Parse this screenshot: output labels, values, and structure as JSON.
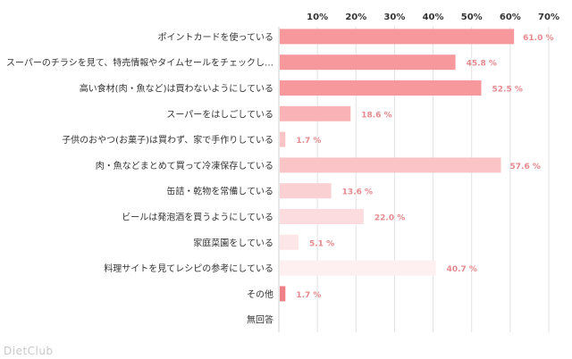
{
  "watermark": "DietClub",
  "chart_data": {
    "type": "bar",
    "orientation": "horizontal",
    "categories": [
      "ポイントカードを使っている",
      "スーパーのチラシを見て、特売情報やタイムセールをチェックし…",
      "高い食材(肉・魚など)は買わないようにしている",
      "スーパーをはしごしている",
      "子供のおやつ(お菓子)は買わず、家で手作りしている",
      "肉・魚などまとめて買って冷凍保存している",
      "缶詰・乾物を常備している",
      "ビールは発泡酒を買うようにしている",
      "家庭菜園をしている",
      "料理サイトを見てレシピの参考にしている",
      "その他",
      "無回答"
    ],
    "values": [
      61.0,
      45.8,
      52.5,
      18.6,
      1.7,
      57.6,
      13.6,
      22.0,
      5.1,
      40.7,
      1.7,
      null
    ],
    "value_labels": [
      "61.0 %",
      "45.8 %",
      "52.5 %",
      "18.6 %",
      "1.7 %",
      "57.6 %",
      "13.6 %",
      "22.0 %",
      "5.1 %",
      "40.7 %",
      "1.7 %",
      ""
    ],
    "bar_colors": [
      "#f7989c",
      "#f7989c",
      "#f7989c",
      "#f9b3b6",
      "#fbc5c8",
      "#fbc5c8",
      "#fbd0d2",
      "#fcdcde",
      "#fde6e7",
      "#fef0f1",
      "#f08088",
      "#f08088"
    ],
    "xlim": [
      0,
      70
    ],
    "x_ticks": [
      "10%",
      "20%",
      "30%",
      "40%",
      "50%",
      "60%",
      "70%"
    ],
    "grid": true,
    "label_color": "#e58a8f"
  }
}
